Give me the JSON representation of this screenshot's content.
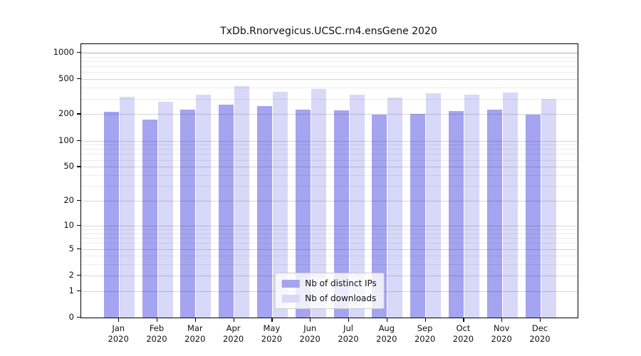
{
  "title": "TxDb.Rnorvegicus.UCSC.rn4.ensGene 2020",
  "chart_data": {
    "type": "bar",
    "title": "TxDb.Rnorvegicus.UCSC.rn4.ensGene 2020",
    "categories": [
      "Jan",
      "Feb",
      "Mar",
      "Apr",
      "May",
      "Jun",
      "Jul",
      "Aug",
      "Sep",
      "Oct",
      "Nov",
      "Dec"
    ],
    "category_year": "2020",
    "series": [
      {
        "name": "Nb of distinct IPs",
        "color": "#a4a4f0",
        "values": [
          215,
          174,
          226,
          257,
          249,
          224,
          221,
          198,
          200,
          216,
          226,
          197
        ]
      },
      {
        "name": "Nb of downloads",
        "color": "#d8d8f8",
        "values": [
          313,
          277,
          331,
          420,
          361,
          390,
          335,
          309,
          344,
          335,
          350,
          300
        ]
      }
    ],
    "xlabel": "",
    "ylabel": "",
    "y_axis": {
      "scale": "log1p",
      "ticks": [
        0,
        1,
        2,
        5,
        10,
        20,
        50,
        100,
        200,
        500,
        1000
      ],
      "minor_ticks": [
        3,
        4,
        6,
        7,
        8,
        9,
        30,
        40,
        60,
        70,
        80,
        90,
        300,
        400,
        600,
        700,
        800,
        900
      ],
      "top_value": 1250
    },
    "grid": true,
    "legend_position": "lower center"
  },
  "colors": {
    "axis": "#000000",
    "title_text": "#111111",
    "tick_text": "#111111",
    "legend_border": "#cccccc"
  }
}
